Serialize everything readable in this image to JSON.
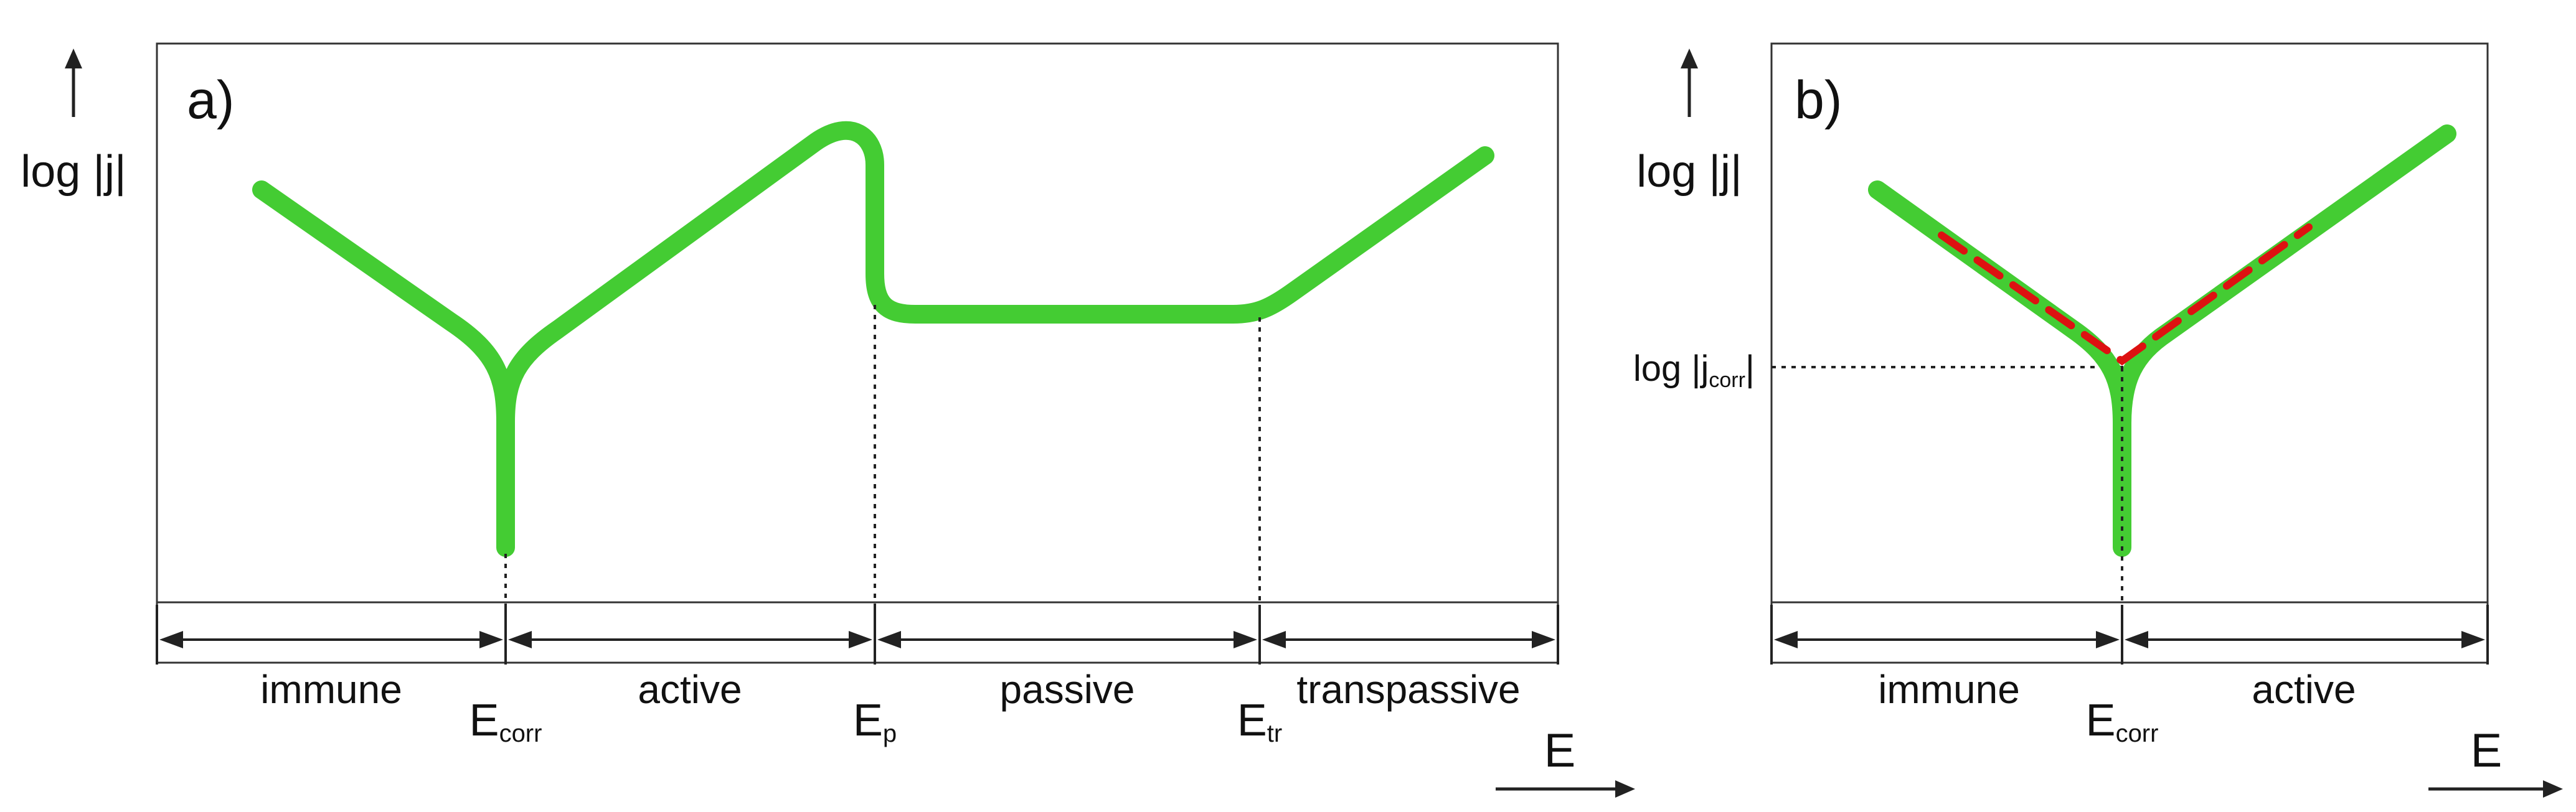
{
  "panel_a": {
    "label": "a)",
    "ylabel": "log |j|",
    "xlabel": "E",
    "regions": [
      "immune",
      "active",
      "passive",
      "transpassive"
    ],
    "markers": [
      {
        "base": "E",
        "sub": "corr"
      },
      {
        "base": "E",
        "sub": "p"
      },
      {
        "base": "E",
        "sub": "tr"
      }
    ]
  },
  "panel_b": {
    "label": "b)",
    "ylabel": "log |j|",
    "xlabel": "E",
    "regions": [
      "immune",
      "active"
    ],
    "markers": [
      {
        "base": "E",
        "sub": "corr"
      }
    ],
    "jcorr_label": {
      "prefix": "log |j",
      "sub": "corr",
      "suffix": "|"
    }
  },
  "colors": {
    "curve": "#44cc33",
    "tafel_fit": "#dd1111",
    "frame": "#333333",
    "text": "#111111"
  }
}
